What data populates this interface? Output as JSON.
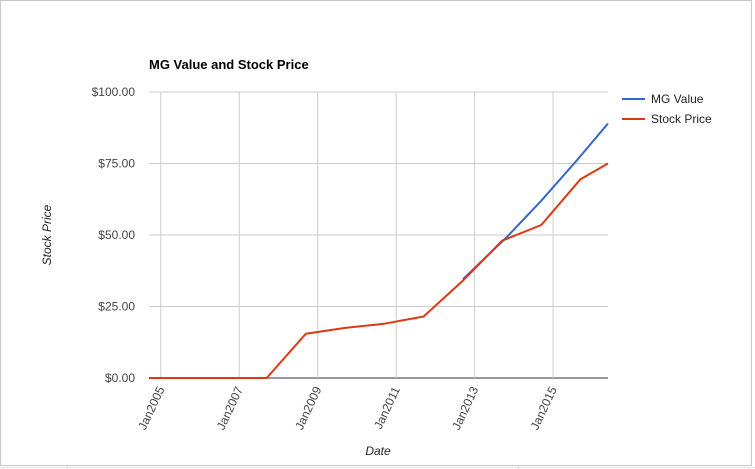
{
  "chart_data": {
    "type": "line",
    "title": "MG Value and Stock Price",
    "xlabel": "Date",
    "ylabel": "Stock Price",
    "ylim": [
      0,
      100
    ],
    "yticks": [
      "$0.00",
      "$25.00",
      "$50.00",
      "$75.00",
      "$100.00"
    ],
    "ytick_values": [
      0,
      25,
      50,
      75,
      100
    ],
    "xlim": [
      2004.7,
      2016.4
    ],
    "xticks": [
      "Jan2005",
      "Jan2007",
      "Jan2009",
      "Jan2011",
      "Jan2013",
      "Jan2015"
    ],
    "xtick_values": [
      2005,
      2007,
      2009,
      2011,
      2013,
      2015
    ],
    "grid": true,
    "legend": "right",
    "series": [
      {
        "name": "MG Value",
        "color": "#3366cc",
        "points": [
          [
            2012.7,
            34.5
          ],
          [
            2013.8,
            49
          ],
          [
            2014.7,
            62
          ],
          [
            2015.6,
            76
          ],
          [
            2016.4,
            89
          ]
        ]
      },
      {
        "name": "Stock Price",
        "color": "#dc3912",
        "points": [
          [
            2004.7,
            0
          ],
          [
            2005.7,
            0
          ],
          [
            2006.7,
            0
          ],
          [
            2007.7,
            0
          ],
          [
            2008.7,
            15.5
          ],
          [
            2009.7,
            17.5
          ],
          [
            2010.7,
            19
          ],
          [
            2011.7,
            21.5
          ],
          [
            2012.7,
            34
          ],
          [
            2013.7,
            48
          ],
          [
            2014.7,
            53.5
          ],
          [
            2015.7,
            69.5
          ],
          [
            2016.4,
            75
          ]
        ]
      }
    ]
  }
}
